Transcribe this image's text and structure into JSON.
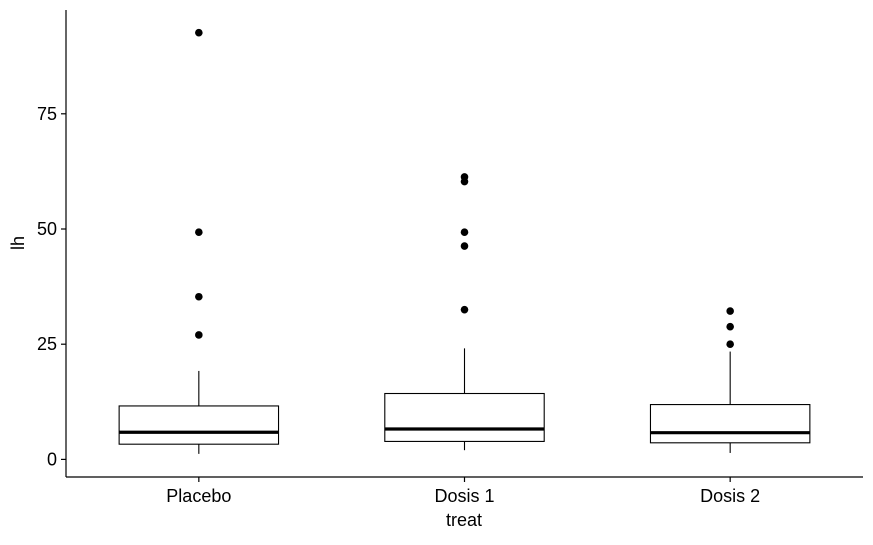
{
  "chart_data": {
    "type": "boxplot",
    "title": "",
    "xlabel": "treat",
    "ylabel": "lh",
    "categories": [
      "Placebo",
      "Dosis 1",
      "Dosis 2"
    ],
    "ylim": [
      -3,
      96
    ],
    "yticks": [
      0,
      25,
      50,
      75
    ],
    "ytick_labels": [
      "0",
      "25",
      "50",
      "75"
    ],
    "grid": false,
    "colors": {
      "box_fill": "#ffffff",
      "stroke": "#000000",
      "outlier": "#000000"
    },
    "boxes": [
      {
        "category": "Placebo",
        "whisker_low": 1.2,
        "q1": 3.3,
        "median": 5.9,
        "q3": 11.6,
        "whisker_high": 19.2,
        "outliers": [
          27.0,
          35.3,
          49.3,
          92.6
        ]
      },
      {
        "category": "Dosis 1",
        "whisker_low": 2.0,
        "q1": 3.9,
        "median": 6.6,
        "q3": 14.3,
        "whisker_high": 24.1,
        "outliers": [
          32.5,
          46.3,
          49.3,
          60.3,
          61.3
        ]
      },
      {
        "category": "Dosis 2",
        "whisker_low": 1.4,
        "q1": 3.6,
        "median": 5.8,
        "q3": 11.9,
        "whisker_high": 23.4,
        "outliers": [
          25.0,
          28.8,
          32.2
        ]
      }
    ]
  }
}
